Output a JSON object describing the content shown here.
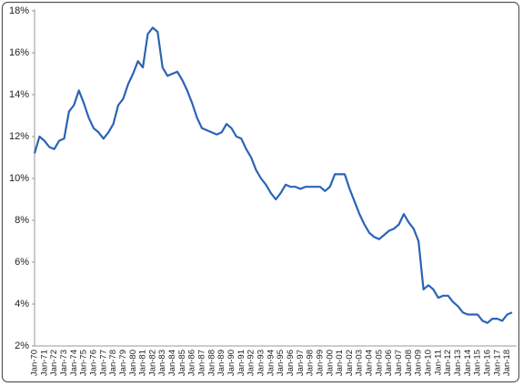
{
  "chart_data": {
    "type": "line",
    "categories": [
      "Jan-70",
      null,
      "Jan-71",
      null,
      "Jan-72",
      null,
      "Jan-73",
      null,
      "Jan-74",
      null,
      "Jan-75",
      null,
      "Jan-76",
      null,
      "Jan-77",
      null,
      "Jan-78",
      null,
      "Jan-79",
      null,
      "Jan-80",
      null,
      "Jan-81",
      null,
      "Jan-82",
      null,
      "Jan-83",
      null,
      "Jan-84",
      null,
      "Jan-85",
      null,
      "Jan-86",
      null,
      "Jan-87",
      null,
      "Jan-88",
      null,
      "Jan-89",
      null,
      "Jan-90",
      null,
      "Jan-91",
      null,
      "Jan-92",
      null,
      "Jan-93",
      null,
      "Jan-94",
      null,
      "Jan-95",
      null,
      "Jan-96",
      null,
      "Jan-97",
      null,
      "Jan-98",
      null,
      "Jan-99",
      null,
      "Jan-00",
      null,
      "Jan-01",
      null,
      "Jan-02",
      null,
      "Jan-03",
      null,
      "Jan-04",
      null,
      "Jan-05",
      null,
      "Jan-06",
      null,
      "Jan-07",
      null,
      "Jan-08",
      null,
      "Jan-09",
      null,
      "Jan-10",
      null,
      "Jan-11",
      null,
      "Jan-12",
      null,
      "Jan-13",
      null,
      "Jan-14",
      null,
      "Jan-15",
      null,
      "Jan-16",
      null,
      "Jan-17",
      null,
      "Jan-18",
      null
    ],
    "values": [
      11.2,
      12.0,
      11.8,
      11.5,
      11.4,
      11.8,
      11.9,
      13.2,
      13.5,
      14.2,
      13.6,
      12.9,
      12.4,
      12.2,
      11.9,
      12.2,
      12.6,
      13.5,
      13.8,
      14.5,
      15.0,
      15.6,
      15.3,
      16.9,
      17.2,
      17.0,
      15.3,
      14.9,
      15.0,
      15.1,
      14.7,
      14.2,
      13.6,
      12.9,
      12.4,
      12.3,
      12.2,
      12.1,
      12.2,
      12.6,
      12.4,
      12.0,
      11.9,
      11.4,
      11.0,
      10.4,
      10.0,
      9.7,
      9.3,
      9.0,
      9.3,
      9.7,
      9.6,
      9.6,
      9.5,
      9.6,
      9.6,
      9.6,
      9.6,
      9.4,
      9.6,
      10.2,
      10.2,
      10.2,
      9.5,
      8.9,
      8.3,
      7.8,
      7.4,
      7.2,
      7.1,
      7.3,
      7.5,
      7.6,
      7.8,
      8.3,
      7.9,
      7.6,
      7.0,
      4.7,
      4.9,
      4.7,
      4.3,
      4.4,
      4.4,
      4.1,
      3.9,
      3.6,
      3.5,
      3.5,
      3.5,
      3.2,
      3.1,
      3.3,
      3.3,
      3.2,
      3.5,
      3.6
    ],
    "color": "#2b63b6",
    "ylim": [
      2,
      18
    ],
    "yticks": [
      {
        "value": 2,
        "label": "2%"
      },
      {
        "value": 4,
        "label": "4%"
      },
      {
        "value": 6,
        "label": "6%"
      },
      {
        "value": 8,
        "label": "8%"
      },
      {
        "value": 10,
        "label": "10%"
      },
      {
        "value": 12,
        "label": "12%"
      },
      {
        "value": 14,
        "label": "14%"
      },
      {
        "value": 16,
        "label": "16%"
      },
      {
        "value": 18,
        "label": "18%"
      }
    ],
    "grid": false
  }
}
